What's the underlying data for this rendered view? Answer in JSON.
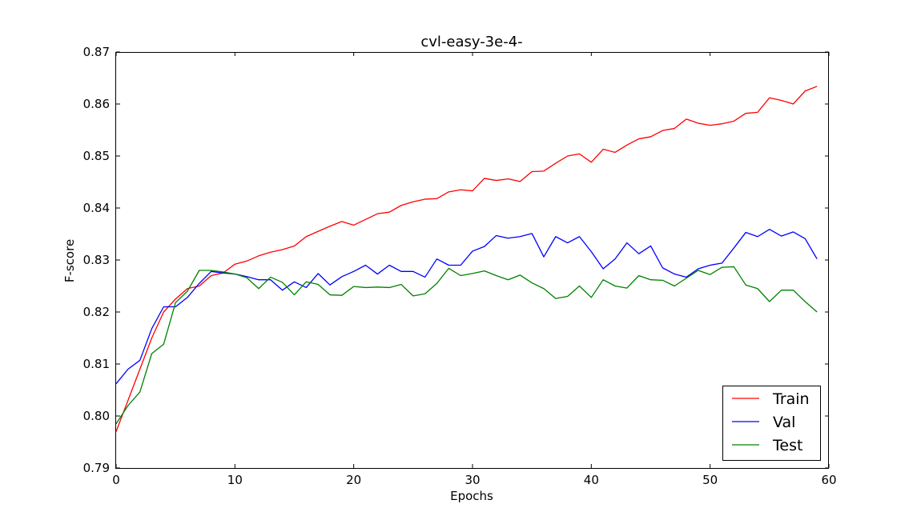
{
  "chart_data": {
    "type": "line",
    "title": "cvl-easy-3e-4-",
    "xlabel": "Epochs",
    "ylabel": "F-score",
    "xlim": [
      0,
      60
    ],
    "ylim": [
      0.79,
      0.87
    ],
    "xticks": [
      0,
      10,
      20,
      30,
      40,
      50,
      60
    ],
    "xtick_labels": [
      "0",
      "10",
      "20",
      "30",
      "40",
      "50",
      "60"
    ],
    "yticks": [
      0.79,
      0.8,
      0.81,
      0.82,
      0.83,
      0.84,
      0.85,
      0.86,
      0.87
    ],
    "ytick_labels": [
      "0.79",
      "0.80",
      "0.81",
      "0.82",
      "0.83",
      "0.84",
      "0.85",
      "0.86",
      "0.87"
    ],
    "grid": false,
    "legend_position": "bottom-right",
    "series": [
      {
        "name": "Train",
        "color": "#ff0000",
        "values": [
          0.797,
          0.803,
          0.809,
          0.815,
          0.82,
          0.8225,
          0.8245,
          0.825,
          0.827,
          0.8275,
          0.8292,
          0.8298,
          0.8308,
          0.8315,
          0.832,
          0.8327,
          0.8345,
          0.8355,
          0.8365,
          0.8374,
          0.8367,
          0.8378,
          0.8389,
          0.8392,
          0.8405,
          0.8412,
          0.8417,
          0.8418,
          0.8431,
          0.8435,
          0.8433,
          0.8457,
          0.8453,
          0.8456,
          0.8451,
          0.847,
          0.8471,
          0.8486,
          0.85,
          0.8504,
          0.8488,
          0.8513,
          0.8507,
          0.8521,
          0.8533,
          0.8537,
          0.8549,
          0.8553,
          0.8571,
          0.8563,
          0.8559,
          0.8562,
          0.8567,
          0.8582,
          0.8584,
          0.8612,
          0.8607,
          0.86,
          0.8625,
          0.8634
        ]
      },
      {
        "name": "Val",
        "color": "#0000ff",
        "values": [
          0.8062,
          0.809,
          0.8107,
          0.8168,
          0.821,
          0.821,
          0.8228,
          0.8255,
          0.8278,
          0.8275,
          0.8273,
          0.8268,
          0.8262,
          0.8262,
          0.8242,
          0.8258,
          0.8247,
          0.8274,
          0.8252,
          0.8268,
          0.8278,
          0.829,
          0.8273,
          0.829,
          0.8278,
          0.8278,
          0.8267,
          0.8302,
          0.829,
          0.829,
          0.8317,
          0.8326,
          0.8347,
          0.8342,
          0.8345,
          0.8351,
          0.8306,
          0.8345,
          0.8333,
          0.8345,
          0.8316,
          0.8283,
          0.8302,
          0.8333,
          0.8312,
          0.8327,
          0.8285,
          0.8273,
          0.8267,
          0.8283,
          0.829,
          0.8294,
          0.8323,
          0.8353,
          0.8345,
          0.8359,
          0.8346,
          0.8354,
          0.8341,
          0.8302
        ]
      },
      {
        "name": "Test",
        "color": "#008000",
        "values": [
          0.7985,
          0.802,
          0.8046,
          0.812,
          0.8138,
          0.8218,
          0.824,
          0.828,
          0.828,
          0.8277,
          0.8273,
          0.8266,
          0.8245,
          0.8267,
          0.8257,
          0.8233,
          0.8258,
          0.8253,
          0.8233,
          0.8232,
          0.8249,
          0.8247,
          0.8248,
          0.8247,
          0.8253,
          0.8231,
          0.8235,
          0.8255,
          0.8284,
          0.827,
          0.8274,
          0.8279,
          0.827,
          0.8262,
          0.8271,
          0.8256,
          0.8245,
          0.8226,
          0.823,
          0.825,
          0.8228,
          0.8262,
          0.825,
          0.8246,
          0.827,
          0.8262,
          0.8261,
          0.825,
          0.8265,
          0.828,
          0.8272,
          0.8286,
          0.8287,
          0.8252,
          0.8245,
          0.822,
          0.8242,
          0.8242,
          0.822,
          0.82
        ]
      }
    ]
  }
}
